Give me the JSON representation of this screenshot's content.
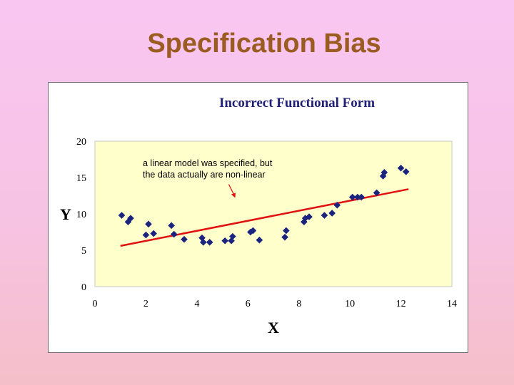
{
  "slide": {
    "title": "Specification Bias"
  },
  "chart_data": {
    "type": "scatter",
    "title": "Incorrect Functional Form",
    "xlabel": "X",
    "ylabel": "Y",
    "xlim": [
      0,
      14
    ],
    "ylim": [
      0,
      20
    ],
    "x_ticks": [
      "0",
      "2",
      "4",
      "6",
      "8",
      "10",
      "12",
      "14"
    ],
    "y_ticks": [
      "0",
      "5",
      "10",
      "15",
      "20"
    ],
    "grid": false,
    "legend": "none",
    "colors": {
      "plot_background": "#ffffcc",
      "points": "#1a237e",
      "fit_line": "#e01010",
      "arrow": "#e01010"
    },
    "series": [
      {
        "type": "scatter",
        "marker": "diamond",
        "points": [
          [
            1.05,
            9.8
          ],
          [
            1.3,
            8.9
          ],
          [
            1.4,
            9.4
          ],
          [
            2.0,
            7.1
          ],
          [
            2.1,
            8.6
          ],
          [
            2.3,
            7.3
          ],
          [
            3.0,
            8.4
          ],
          [
            3.1,
            7.2
          ],
          [
            3.5,
            6.5
          ],
          [
            4.2,
            6.7
          ],
          [
            4.25,
            6.1
          ],
          [
            4.5,
            6.1
          ],
          [
            5.1,
            6.3
          ],
          [
            5.35,
            6.3
          ],
          [
            5.4,
            6.9
          ],
          [
            6.1,
            7.5
          ],
          [
            6.2,
            7.7
          ],
          [
            6.45,
            6.4
          ],
          [
            7.45,
            6.8
          ],
          [
            7.5,
            7.7
          ],
          [
            8.2,
            8.9
          ],
          [
            8.25,
            9.4
          ],
          [
            8.4,
            9.6
          ],
          [
            9.0,
            9.8
          ],
          [
            9.3,
            10.1
          ],
          [
            9.5,
            11.2
          ],
          [
            10.1,
            12.3
          ],
          [
            10.3,
            12.3
          ],
          [
            10.45,
            12.3
          ],
          [
            11.05,
            12.9
          ],
          [
            11.3,
            15.2
          ],
          [
            11.35,
            15.7
          ],
          [
            12.0,
            16.3
          ],
          [
            12.2,
            15.8
          ]
        ]
      },
      {
        "type": "line",
        "points": [
          [
            1.0,
            5.6
          ],
          [
            12.3,
            13.4
          ]
        ]
      }
    ],
    "annotation": {
      "lines": [
        "a linear model was specified, but",
        "the data actually are non-linear"
      ],
      "arrow_tip": [
        5.5,
        12.2
      ]
    }
  }
}
